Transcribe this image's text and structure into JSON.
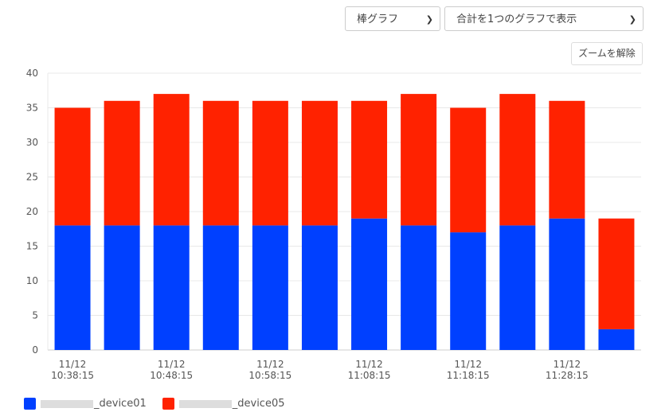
{
  "controls": {
    "chart_type": "棒グラフ",
    "display_mode": "合計を1つのグラフで表示",
    "reset_zoom": "ズームを解除"
  },
  "colors": {
    "device01": "#0040ff",
    "device05": "#ff2200"
  },
  "chart_data": {
    "type": "bar",
    "stacked": true,
    "categories": [
      "11/12 10:38:15",
      "11/12 10:43:15",
      "11/12 10:48:15",
      "11/12 10:53:15",
      "11/12 10:58:15",
      "11/12 11:03:15",
      "11/12 11:08:15",
      "11/12 11:13:15",
      "11/12 11:18:15",
      "11/12 11:23:15",
      "11/12 11:28:15",
      "11/12 11:33:15"
    ],
    "tick_labels": [
      [
        "11/12",
        "10:38:15"
      ],
      [
        "11/12",
        "10:48:15"
      ],
      [
        "11/12",
        "10:58:15"
      ],
      [
        "11/12",
        "11:08:15"
      ],
      [
        "11/12",
        "11:18:15"
      ],
      [
        "11/12",
        "11:28:15"
      ]
    ],
    "series": [
      {
        "name": "_device01",
        "color": "#0040ff",
        "values": [
          18,
          18,
          18,
          18,
          18,
          18,
          19,
          18,
          17,
          18,
          19,
          3
        ]
      },
      {
        "name": "_device05",
        "color": "#ff2200",
        "values": [
          17,
          18,
          19,
          18,
          18,
          18,
          17,
          19,
          18,
          19,
          17,
          16
        ]
      }
    ],
    "ylim": [
      0,
      40
    ],
    "yticks": [
      0,
      5,
      10,
      15,
      20,
      25,
      30,
      35,
      40
    ],
    "grid": true,
    "legend": "bottom-left"
  }
}
